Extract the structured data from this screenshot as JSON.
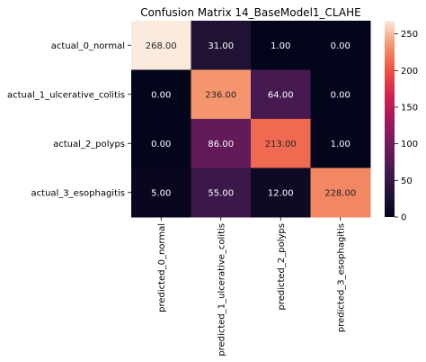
{
  "chart_data": {
    "type": "heatmap",
    "title": "Confusion Matrix 14_BaseModel1_CLAHE",
    "rows": [
      "actual_0_normal",
      "actual_1_ulcerative_colitis",
      "actual_2_polyps",
      "actual_3_esophagitis"
    ],
    "columns": [
      "predicted_0_normal",
      "predicted_1_ulcerative_colitis",
      "predicted_2_polyps",
      "predicted_3_esophagitis"
    ],
    "values": [
      [
        268,
        31,
        1,
        0
      ],
      [
        0,
        236,
        64,
        0
      ],
      [
        0,
        86,
        213,
        1
      ],
      [
        5,
        55,
        12,
        228
      ]
    ],
    "value_format": "2 decimals",
    "colormap": "rocket",
    "vmin": 0,
    "vmax": 268,
    "colorbar_ticks": [
      0,
      50,
      100,
      150,
      200,
      250
    ],
    "colorbar_tick_labels": [
      "0",
      "50",
      "100",
      "150",
      "200",
      "250"
    ],
    "xlabel": "",
    "ylabel": ""
  }
}
